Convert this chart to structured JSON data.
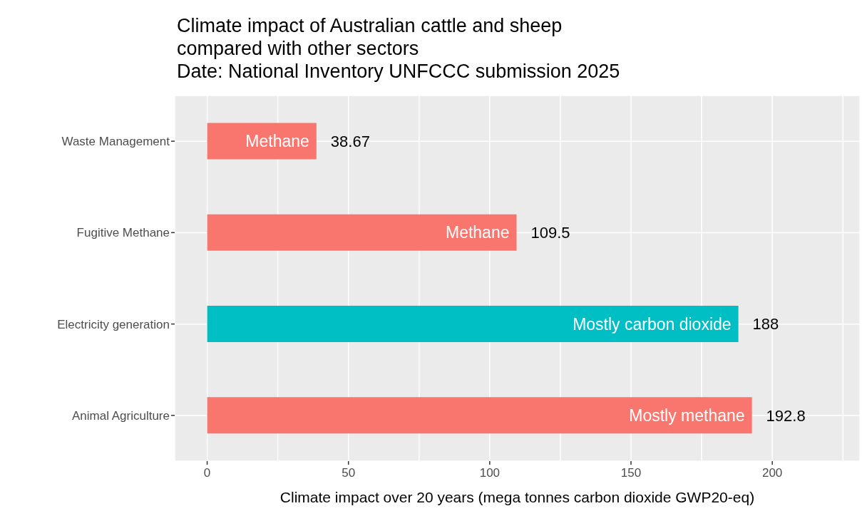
{
  "chart_data": {
    "type": "bar",
    "orientation": "horizontal",
    "title": "Climate impact of Australian cattle and sheep\ncompared with other sectors\nDate: National Inventory UNFCCC submission 2025",
    "xlabel": "Climate impact over 20 years (mega tonnes carbon dioxide GWP20-eq)",
    "categories": [
      "Waste Management",
      "Fugitive Methane",
      "Electricity generation",
      "Animal Agriculture"
    ],
    "values": [
      38.67,
      109.5,
      188,
      192.8
    ],
    "colors": [
      "#f8766d",
      "#f8766d",
      "#00bfc4",
      "#f8766d"
    ],
    "data_labels": true,
    "xlim": [
      -11.5,
      231
    ],
    "xticks": [
      0,
      {
        "value": 25,
        "label": null
      },
      50,
      {
        "value": 75,
        "label": null
      },
      100,
      {
        "value": 125,
        "label": null
      },
      150,
      {
        "value": 175,
        "label": null
      },
      200,
      {
        "value": 225,
        "label": null
      }
    ],
    "grid": true,
    "legend": false,
    "annotations": [
      {
        "text": "Methane",
        "x": 38.67,
        "y": "Waste Management"
      },
      {
        "text": "Methane",
        "x": 109.5,
        "y": "Fugitive Methane"
      },
      {
        "text": "Mostly carbon dioxide",
        "x": 188,
        "y": "Electricity generation"
      },
      {
        "text": "Mostly methane",
        "x": 192.8,
        "y": "Animal Agriculture"
      }
    ]
  }
}
